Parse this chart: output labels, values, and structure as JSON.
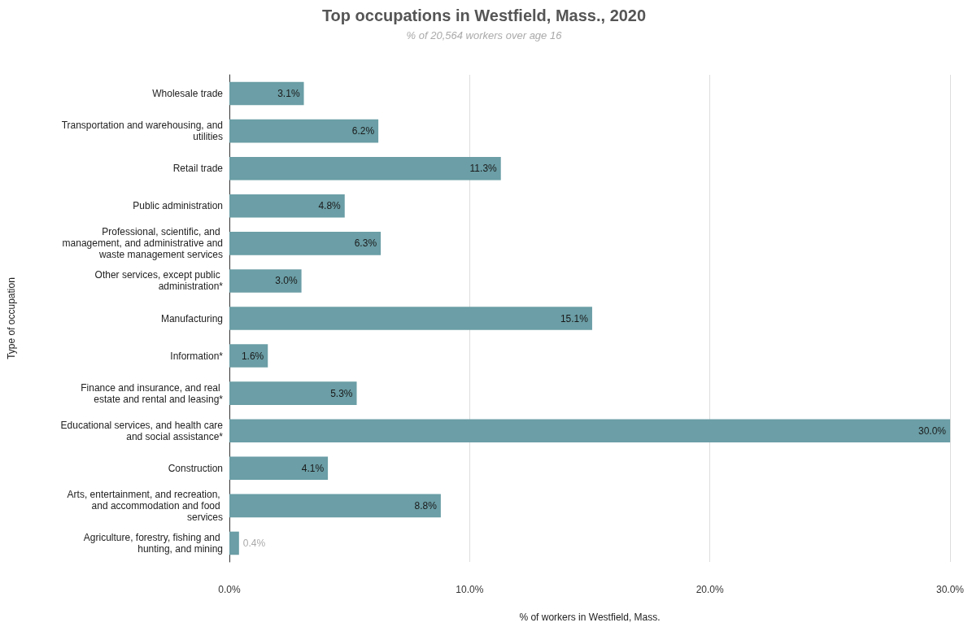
{
  "chart_data": {
    "type": "bar",
    "orientation": "horizontal",
    "title": "Top occupations in Westfield, Mass., 2020",
    "subtitle": "% of 20,564 workers over age 16",
    "xlabel": "% of workers in Westfield, Mass.",
    "ylabel": "Type of occupation",
    "categories": [
      "Wholesale trade",
      "Transportation and warehousing, and utilities",
      "Retail trade",
      "Public administration",
      "Professional, scientific, and management, and administrative and waste management services",
      "Other services, except public administration*",
      "Manufacturing",
      "Information*",
      "Finance and insurance, and real estate and rental and leasing*",
      "Educational services, and health care and social assistance*",
      "Construction",
      "Arts, entertainment, and recreation, and accommodation and food services",
      "Agriculture, forestry, fishing and hunting, and mining"
    ],
    "values": [
      3.1,
      6.2,
      11.3,
      4.8,
      6.3,
      3.0,
      15.1,
      1.6,
      5.3,
      30.0,
      4.1,
      8.8,
      0.4
    ],
    "value_labels": [
      "3.1%",
      "6.2%",
      "11.3%",
      "4.8%",
      "6.3%",
      "3.0%",
      "15.1%",
      "1.6%",
      "5.3%",
      "30.0%",
      "4.1%",
      "8.8%",
      "0.4%"
    ],
    "color": "#6b9ea6",
    "xlim": [
      0,
      30
    ],
    "xticks": [
      {
        "value": 0,
        "label": "0.0%"
      },
      {
        "value": 10,
        "label": "10.0%"
      },
      {
        "value": 20,
        "label": "20.0%"
      },
      {
        "value": 30,
        "label": "30.0%"
      }
    ],
    "grid": "x"
  }
}
